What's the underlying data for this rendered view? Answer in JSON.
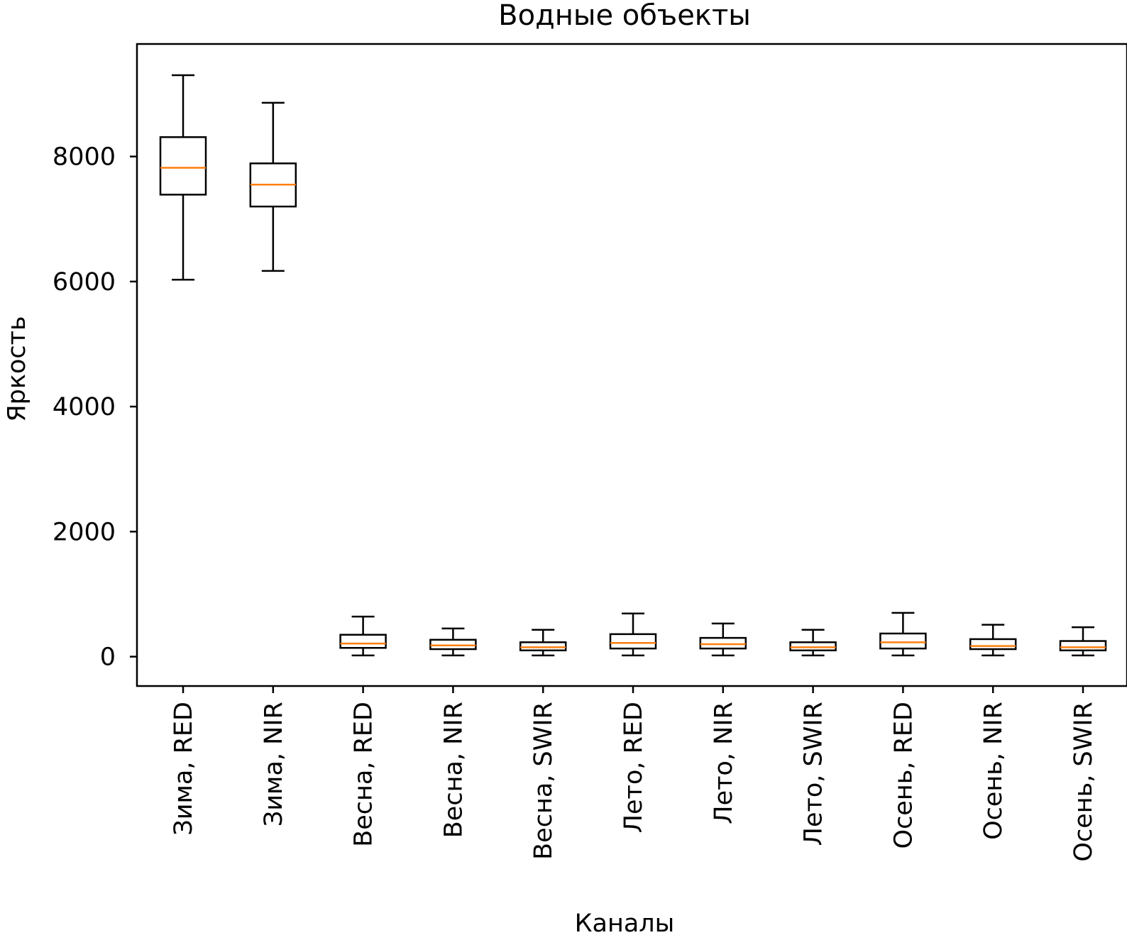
{
  "chart_data": {
    "type": "box",
    "title": "Водные объекты",
    "xlabel": "Каналы",
    "ylabel": "Яркость",
    "ylim": [
      -470,
      9800
    ],
    "yticks": [
      0,
      2000,
      4000,
      6000,
      8000
    ],
    "grid": false,
    "legend": "none",
    "colors": {
      "box": "#000000",
      "median": "#ff7f0e",
      "background": "#ffffff"
    },
    "categories": [
      "Зима, RED",
      "Зима, NIR",
      "Весна, RED",
      "Весна, NIR",
      "Весна, SWIR",
      "Лето, RED",
      "Лето, NIR",
      "Лето, SWIR",
      "Осень, RED",
      "Осень, NIR",
      "Осень, SWIR"
    ],
    "boxes": [
      {
        "whisker_low": 6030,
        "q1": 7390,
        "median": 7820,
        "q3": 8310,
        "whisker_high": 9300
      },
      {
        "whisker_low": 6170,
        "q1": 7200,
        "median": 7550,
        "q3": 7890,
        "whisker_high": 8860
      },
      {
        "whisker_low": 20,
        "q1": 140,
        "median": 210,
        "q3": 350,
        "whisker_high": 640
      },
      {
        "whisker_low": 20,
        "q1": 120,
        "median": 180,
        "q3": 270,
        "whisker_high": 450
      },
      {
        "whisker_low": 20,
        "q1": 100,
        "median": 150,
        "q3": 230,
        "whisker_high": 430
      },
      {
        "whisker_low": 20,
        "q1": 130,
        "median": 220,
        "q3": 360,
        "whisker_high": 690
      },
      {
        "whisker_low": 20,
        "q1": 130,
        "median": 200,
        "q3": 300,
        "whisker_high": 530
      },
      {
        "whisker_low": 20,
        "q1": 100,
        "median": 150,
        "q3": 230,
        "whisker_high": 430
      },
      {
        "whisker_low": 20,
        "q1": 130,
        "median": 230,
        "q3": 370,
        "whisker_high": 700
      },
      {
        "whisker_low": 20,
        "q1": 120,
        "median": 170,
        "q3": 280,
        "whisker_high": 510
      },
      {
        "whisker_low": 20,
        "q1": 100,
        "median": 150,
        "q3": 250,
        "whisker_high": 470
      }
    ]
  }
}
